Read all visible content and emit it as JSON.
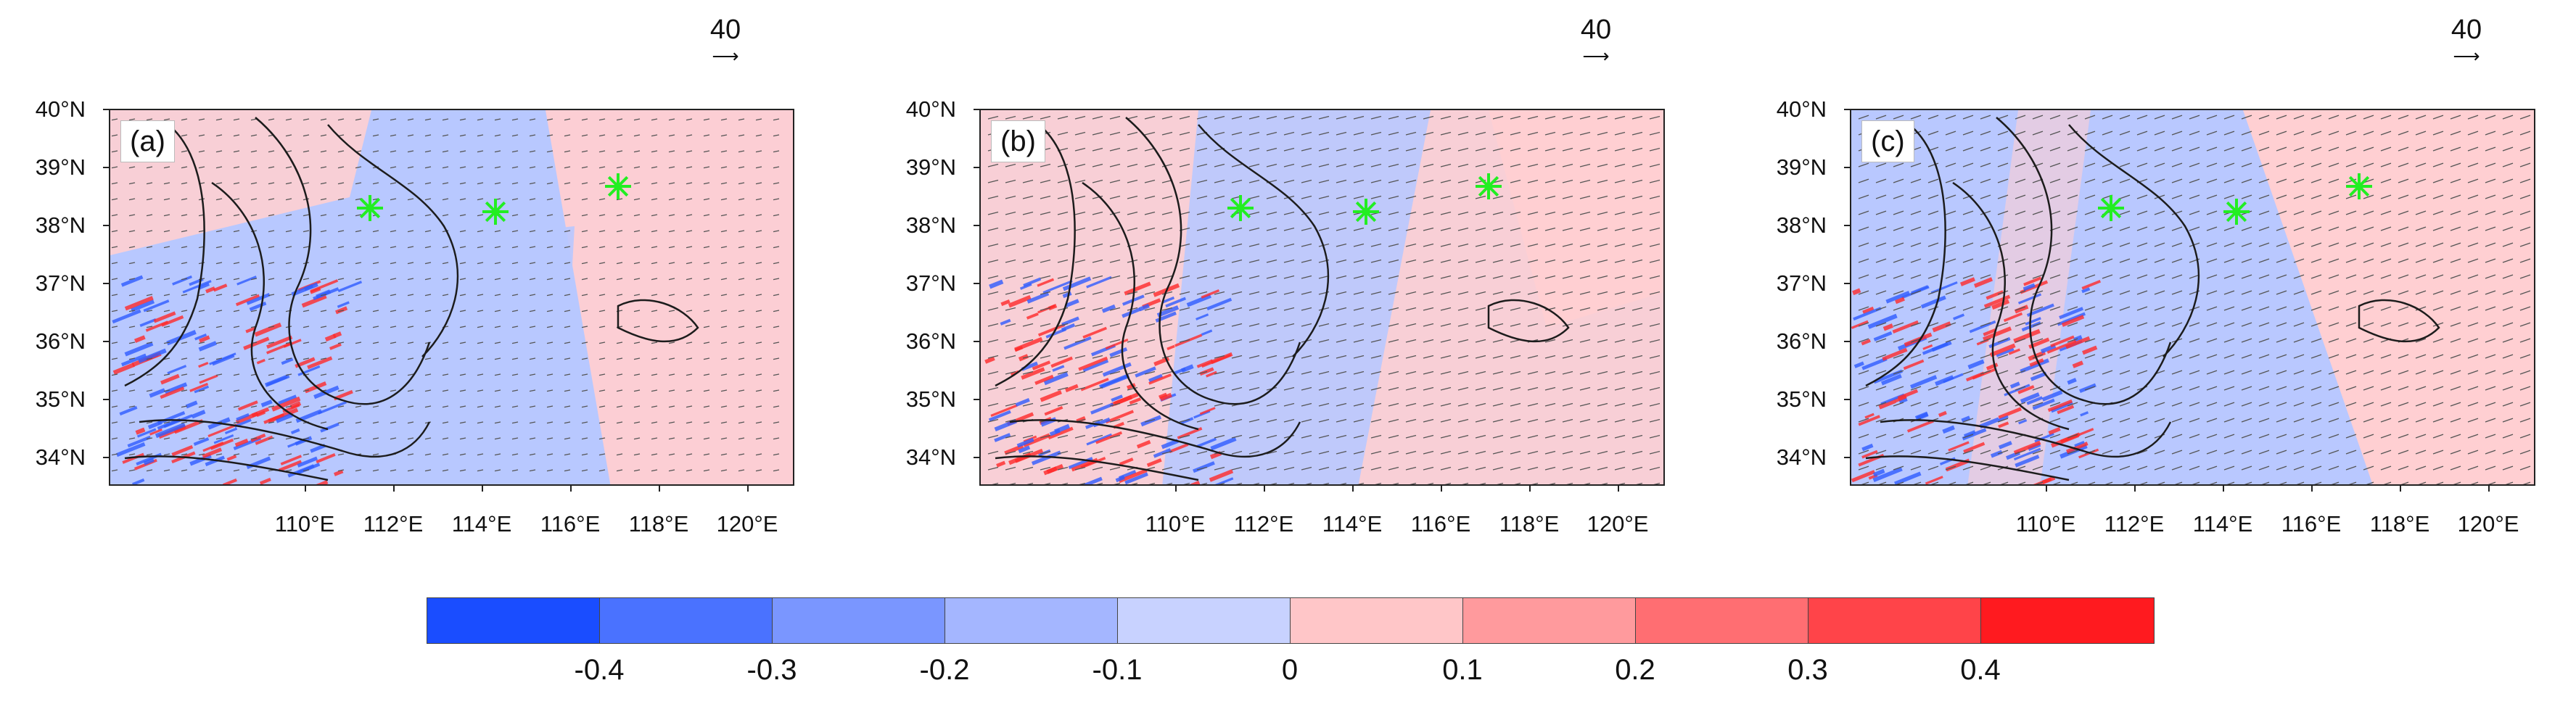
{
  "panels": [
    {
      "label": "(a)",
      "ref_vector": "40",
      "pattern": "a"
    },
    {
      "label": "(b)",
      "ref_vector": "40",
      "pattern": "b"
    },
    {
      "label": "(c)",
      "ref_vector": "40",
      "pattern": "c"
    }
  ],
  "lat_ticks": [
    "40°N",
    "39°N",
    "38°N",
    "37°N",
    "36°N",
    "35°N",
    "34°N"
  ],
  "lon_ticks": [
    "110°E",
    "112°E",
    "114°E",
    "116°E",
    "118°E",
    "120°E"
  ],
  "colorbar": {
    "colors": [
      "#1a4dff",
      "#4a72ff",
      "#7a96ff",
      "#a4b6ff",
      "#c8d2ff",
      "#ffc6c8",
      "#ff9a9d",
      "#ff6e72",
      "#ff4449",
      "#ff1a1f"
    ],
    "labels": [
      "-0.4",
      "-0.3",
      "-0.2",
      "-0.1",
      "0",
      "0.1",
      "0.2",
      "0.3",
      "0.4"
    ]
  },
  "markers": {
    "color": "#22ee22",
    "symbol": "asterisk"
  },
  "field_colors": {
    "blue": "#b8c8ff",
    "pink": "#ffcfd2",
    "deep_blue": "#2f5cff",
    "deep_red": "#ff2a2a"
  }
}
